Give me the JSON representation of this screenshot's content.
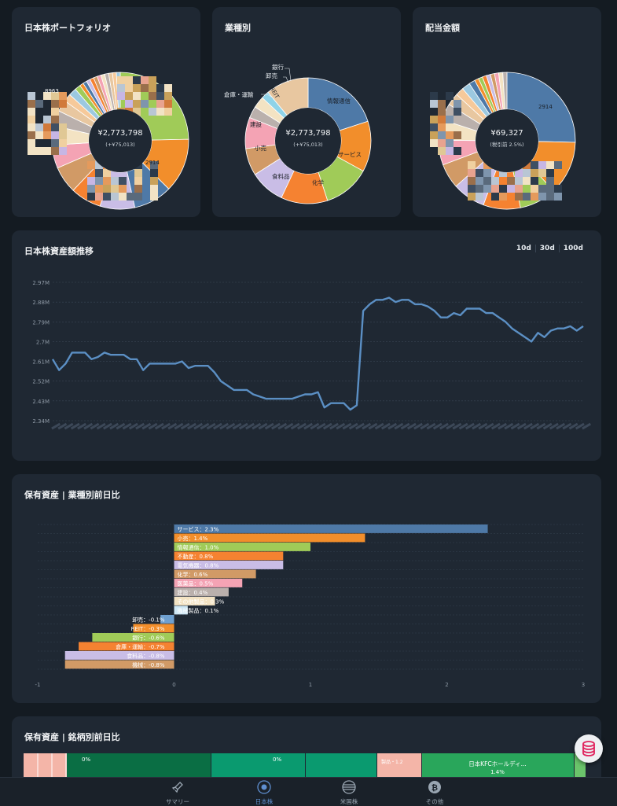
{
  "cards": {
    "portfolio": {
      "title": "日本株ポートフォリオ",
      "center_value": "¥2,773,798",
      "center_sub": "(+¥75,013)",
      "labels": [
        "8963",
        "2914"
      ]
    },
    "sector": {
      "title": "業種別",
      "center_value": "¥2,773,798",
      "center_sub": "(+¥75,013)",
      "labels": [
        "情報通信",
        "サービス",
        "化学",
        "食料品",
        "小売",
        "建設",
        "倉庫・運輸",
        "REIT",
        "卸売",
        "銀行"
      ]
    },
    "dividend": {
      "title": "配当金額",
      "center_value": "¥69,327",
      "center_sub": "(税引前 2.5%)",
      "labels": [
        "2914"
      ]
    },
    "history": {
      "title": "日本株資産額推移",
      "range_buttons": [
        "10d",
        "30d",
        "100d"
      ]
    },
    "sector_change": {
      "title": "保有資産 | 業種別前日比"
    },
    "stock_change": {
      "title": "保有資産 | 銘柄別前日比",
      "tiles": [
        "0%",
        "0%",
        "日本KFCホールディ...",
        "1.4%",
        "製品・1.2"
      ]
    }
  },
  "colors": {
    "blue": "#4e79a7",
    "orange": "#f28e2b",
    "green": "#a0cb58",
    "orange2": "#f58231",
    "lavender": "#c9bde6",
    "tan": "#d19a66",
    "pink": "#f4a3b4",
    "gray": "#bab0ac",
    "cream": "#f3e3c3",
    "teal": "#2a9d8f",
    "line": "#5b8fc4"
  },
  "chart_data": [
    {
      "type": "pie",
      "title": "業種別",
      "categories": [
        "情報通信",
        "サービス",
        "化学",
        "食料品",
        "小売",
        "建設",
        "倉庫・運輸",
        "REIT",
        "卸売",
        "銀行",
        "その他"
      ],
      "values": [
        20,
        13,
        12,
        12,
        9,
        7,
        8,
        3,
        3,
        2,
        11
      ]
    },
    {
      "type": "line",
      "title": "日本株資産額推移",
      "ylabel": "",
      "ytick_labels": [
        "2.97M",
        "2.88M",
        "2.79M",
        "2.7M",
        "2.61M",
        "2.52M",
        "2.43M",
        "2.34M"
      ],
      "ylim": [
        2340000,
        2970000
      ],
      "y": [
        2620000,
        2570000,
        2600000,
        2650000,
        2650000,
        2650000,
        2620000,
        2630000,
        2650000,
        2640000,
        2640000,
        2640000,
        2620000,
        2620000,
        2570000,
        2600000,
        2600000,
        2600000,
        2600000,
        2600000,
        2610000,
        2580000,
        2590000,
        2590000,
        2590000,
        2560000,
        2520000,
        2500000,
        2480000,
        2480000,
        2480000,
        2460000,
        2450000,
        2440000,
        2440000,
        2440000,
        2440000,
        2440000,
        2450000,
        2460000,
        2460000,
        2470000,
        2400000,
        2420000,
        2420000,
        2420000,
        2390000,
        2410000,
        2840000,
        2870000,
        2890000,
        2890000,
        2900000,
        2880000,
        2890000,
        2890000,
        2870000,
        2870000,
        2860000,
        2840000,
        2810000,
        2810000,
        2830000,
        2820000,
        2850000,
        2850000,
        2850000,
        2830000,
        2830000,
        2810000,
        2790000,
        2760000,
        2740000,
        2720000,
        2700000,
        2740000,
        2720000,
        2750000,
        2760000,
        2760000,
        2770000,
        2750000,
        2770000
      ]
    },
    {
      "type": "bar",
      "title": "保有資産 | 業種別前日比",
      "categories": [
        "サービス",
        "小売",
        "情報通信",
        "不動産",
        "電気機器",
        "化学",
        "医薬品",
        "建設",
        "その他製品",
        "機械製品",
        "卸売",
        "REIT",
        "銀行",
        "倉庫・運輸",
        "食料品",
        "機械"
      ],
      "values": [
        2.3,
        1.4,
        1.0,
        0.8,
        0.8,
        0.6,
        0.5,
        0.4,
        0.3,
        0.1,
        -0.1,
        -0.3,
        -0.6,
        -0.7,
        -0.8,
        -0.8
      ],
      "xlim": [
        -1,
        3
      ],
      "xtick_labels": [
        "-1",
        "0",
        "1",
        "2",
        "3"
      ]
    }
  ],
  "nav": {
    "items": [
      {
        "label": "サマリー"
      },
      {
        "label": "日本株"
      },
      {
        "label": "米国株"
      },
      {
        "label": "その他"
      }
    ]
  }
}
